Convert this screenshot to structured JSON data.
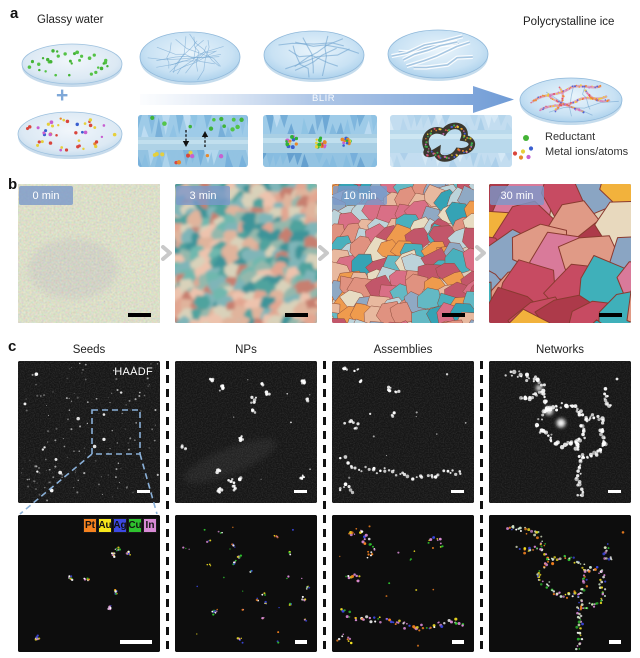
{
  "figure": {
    "panel_a": {
      "label": "a",
      "glassy_water_label": "Glassy water",
      "polycrystalline_label": "Polycrystalline ice",
      "plus_sign": "+",
      "arrow_label": "BLIR",
      "legend": {
        "reductant": "Reductant",
        "metal_ions": "Metal ions/atoms"
      },
      "colors": {
        "reductant_dot": "#43b335",
        "arrow_blue": "#6f9bd6",
        "ice_blue": "#bcdcf2"
      }
    },
    "panel_b": {
      "label": "b",
      "frames": [
        {
          "time_label": "0 min"
        },
        {
          "time_label": "3 min"
        },
        {
          "time_label": "10 min"
        },
        {
          "time_label": "30 min"
        }
      ]
    },
    "panel_c": {
      "label": "c",
      "column_headers": [
        "Seeds",
        "NPs",
        "Assemblies",
        "Networks"
      ],
      "detector_label": "HAADF",
      "edx_legend": [
        {
          "element": "Pt",
          "color": "#f5821f"
        },
        {
          "element": "Au",
          "color": "#f6e61b"
        },
        {
          "element": "Ag",
          "color": "#3c49e2"
        },
        {
          "element": "Cu",
          "color": "#2ec22e"
        },
        {
          "element": "In",
          "color": "#d88ad5"
        }
      ]
    }
  }
}
